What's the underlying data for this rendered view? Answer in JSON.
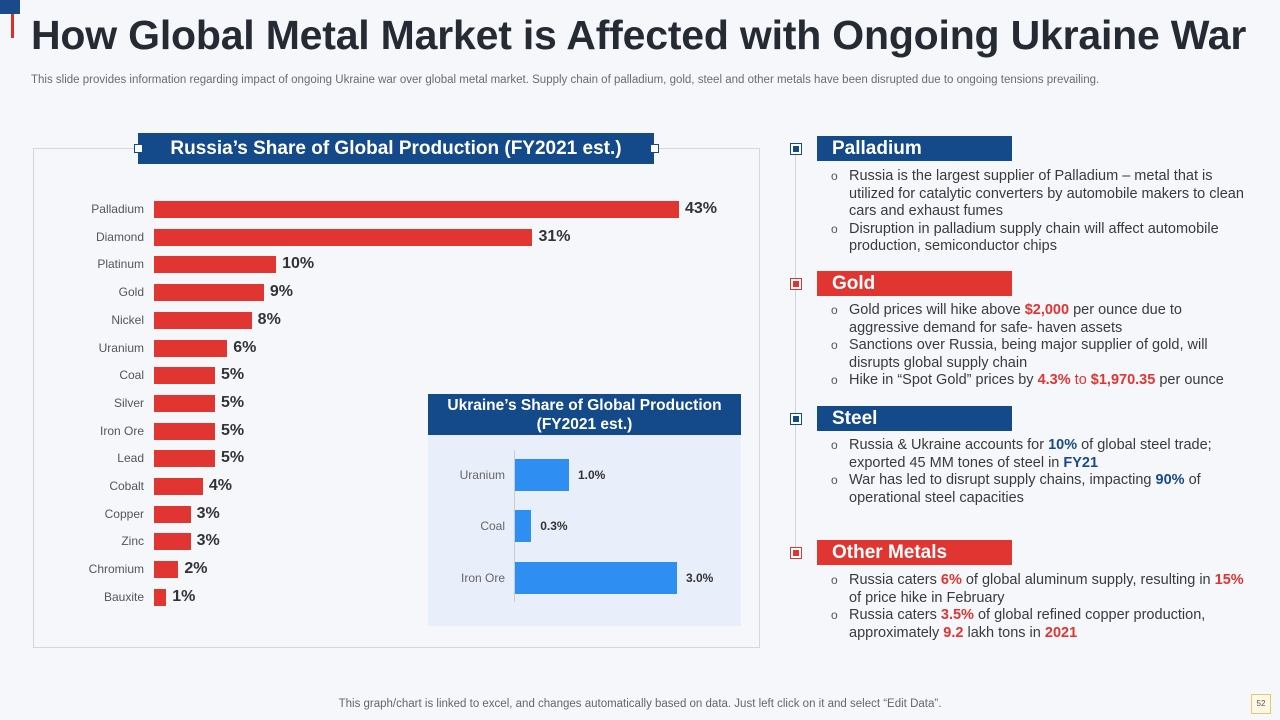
{
  "slide": {
    "title": "How Global Metal Market is Affected with Ongoing Ukraine War",
    "subtitle": "This slide provides information regarding impact of ongoing Ukraine war over global metal market. Supply chain of palladium, gold, steel and other metals have been disrupted due to ongoing tensions prevailing.",
    "footer": "This graph/chart is linked to excel,  and changes automatically based on data. Just left click on it and select “Edit Data”.",
    "page_number": "52"
  },
  "colors": {
    "navy": "#154a8a",
    "red": "#e03531",
    "blue_bar": "#2e8ef2"
  },
  "chart_data": [
    {
      "type": "bar",
      "orientation": "horizontal",
      "title": "Russia’s Share of Global Production (FY2021 est.)",
      "categories": [
        "Palladium",
        "Diamond",
        "Platinum",
        "Gold",
        "Nickel",
        "Uranium",
        "Coal",
        "Silver",
        "Iron Ore",
        "Lead",
        "Cobalt",
        "Copper",
        "Zinc",
        "Chromium",
        "Bauxite"
      ],
      "values": [
        43,
        31,
        10,
        9,
        8,
        6,
        5,
        5,
        5,
        5,
        4,
        3,
        3,
        2,
        1
      ],
      "value_labels": [
        "43%",
        "31%",
        "10%",
        "9%",
        "8%",
        "6%",
        "5%",
        "5%",
        "5%",
        "5%",
        "4%",
        "3%",
        "3%",
        "2%",
        "1%"
      ],
      "color": "#e03531",
      "grid": false
    },
    {
      "type": "bar",
      "orientation": "horizontal",
      "title": "Ukraine’s Share of Global Production (FY2021 est.)",
      "categories": [
        "Uranium",
        "Coal",
        "Iron Ore"
      ],
      "values": [
        1.0,
        0.3,
        3.0
      ],
      "value_labels": [
        "1.0%",
        "0.3%",
        "3.0%"
      ],
      "color": "#2e8ef2",
      "grid": false
    }
  ],
  "sections": [
    {
      "title": "Palladium",
      "bullets": [
        [
          {
            "t": "Russia is the largest supplier of Palladium – metal that is utilized for catalytic converters by automobile makers to clean cars and exhaust fumes"
          }
        ],
        [
          {
            "t": "Disruption in palladium supply chain will affect automobile production, semiconductor chips"
          }
        ]
      ]
    },
    {
      "title": "Gold",
      "bullets": [
        [
          {
            "t": "Gold prices will hike above "
          },
          {
            "t": "$2,000",
            "c": "red"
          },
          {
            "t": " per ounce due to aggressive demand for safe- haven assets"
          }
        ],
        [
          {
            "t": "Sanctions over Russia, being major supplier of gold, will disrupts global supply chain"
          }
        ],
        [
          {
            "t": "Hike in “Spot Gold” prices by "
          },
          {
            "t": "4.3%",
            "c": "red"
          },
          {
            "t": " to ",
            "c": "red-plain"
          },
          {
            "t": "$1,970.35",
            "c": "red"
          },
          {
            "t": " per ounce"
          }
        ]
      ]
    },
    {
      "title": "Steel",
      "bullets": [
        [
          {
            "t": "Russia & Ukraine accounts for "
          },
          {
            "t": "10%",
            "c": "blue"
          },
          {
            "t": " of global steel trade; exported 45 MM tones of steel in "
          },
          {
            "t": "FY21",
            "c": "blue"
          }
        ],
        [
          {
            "t": "War has led to disrupt supply chains, impacting "
          },
          {
            "t": "90%",
            "c": "blue"
          },
          {
            "t": " of operational steel capacities"
          }
        ]
      ]
    },
    {
      "title": "Other Metals",
      "bullets": [
        [
          {
            "t": "Russia caters "
          },
          {
            "t": "6%",
            "c": "red"
          },
          {
            "t": " of global aluminum supply, resulting in "
          },
          {
            "t": "15%",
            "c": "red"
          },
          {
            "t": " of price hike in February"
          }
        ],
        [
          {
            "t": "Russia caters "
          },
          {
            "t": "3.5%",
            "c": "red"
          },
          {
            "t": " of global refined copper production, approximately "
          },
          {
            "t": "9.2",
            "c": "red"
          },
          {
            "t": " lakh tons in "
          },
          {
            "t": "2021",
            "c": "red"
          }
        ]
      ]
    }
  ]
}
